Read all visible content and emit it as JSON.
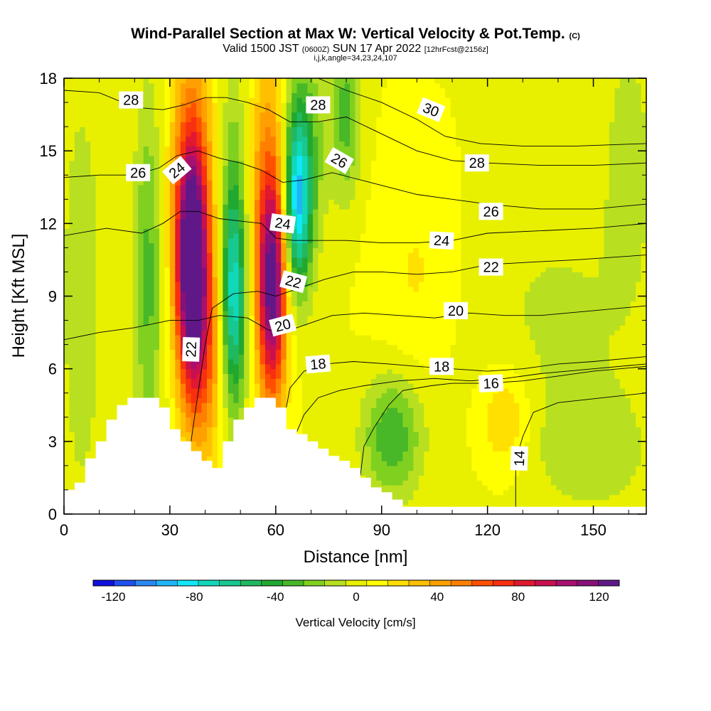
{
  "header": {
    "title": "Wind-Parallel Section at Max W: Vertical Velocity & Pot.Temp.",
    "title_mark": "(C)",
    "valid_prefix": "Valid 1500 JST",
    "valid_utc": "(0600Z)",
    "valid_date": "SUN 17 Apr 2022",
    "forecast": "[12hrFcst@2156z]",
    "indices": "i,j,k,angle=34,23,24,107"
  },
  "colors": {
    "scale": [
      "#1010e0",
      "#1e50f0",
      "#2888f0",
      "#20b4f8",
      "#10e8f8",
      "#10d8b8",
      "#18c890",
      "#20b860",
      "#20a830",
      "#48b828",
      "#80d020",
      "#b8e020",
      "#e8f000",
      "#ffff00",
      "#ffe000",
      "#ffc000",
      "#ffa000",
      "#ff8000",
      "#ff5000",
      "#f83010",
      "#e01830",
      "#c81050",
      "#a81070",
      "#881078",
      "#601888"
    ],
    "terrain": "#ffffff",
    "contour": "#000000"
  },
  "chart_data": {
    "type": "heatmap",
    "xlabel": "Distance [nm]",
    "ylabel": "Height [Kft MSL]",
    "xlim": [
      0,
      165
    ],
    "ylim": [
      0,
      18
    ],
    "xticks": [
      "0",
      "30",
      "60",
      "90",
      "120",
      "150"
    ],
    "yticks": [
      "0",
      "3",
      "6",
      "9",
      "12",
      "15",
      "18"
    ],
    "colorbar": {
      "label": "Vertical Velocity [cm/s]",
      "min": -130,
      "max": 130,
      "ticks": [
        "-120",
        "-80",
        "-40",
        "0",
        "40",
        "80",
        "120"
      ]
    },
    "velocity_field": {
      "background": 5,
      "features": [
        {
          "x": 36,
          "y": 10.5,
          "sx": 3.0,
          "sy": 3.6,
          "value": 130
        },
        {
          "x": 37,
          "y": 14.5,
          "sx": 5.5,
          "sy": 4.5,
          "value": 30
        },
        {
          "x": 40,
          "y": 7.0,
          "sx": 4.0,
          "sy": 3.5,
          "value": 45
        },
        {
          "x": 59,
          "y": 9.2,
          "sx": 2.8,
          "sy": 3.2,
          "value": 105
        },
        {
          "x": 58,
          "y": 13.5,
          "sx": 4.5,
          "sy": 4.5,
          "value": 40
        },
        {
          "x": 48,
          "y": 8.8,
          "sx": 2.6,
          "sy": 3.3,
          "value": -75
        },
        {
          "x": 48,
          "y": 14.0,
          "sx": 3.5,
          "sy": 4.5,
          "value": -25
        },
        {
          "x": 66,
          "y": 12.8,
          "sx": 2.8,
          "sy": 2.6,
          "value": -85
        },
        {
          "x": 68,
          "y": 15.5,
          "sx": 4.5,
          "sy": 3.5,
          "value": -30
        },
        {
          "x": 80,
          "y": 16.5,
          "sx": 3.0,
          "sy": 2.5,
          "value": -35
        },
        {
          "x": 24,
          "y": 10.0,
          "sx": 3.0,
          "sy": 5.5,
          "value": -35
        },
        {
          "x": 5,
          "y": 9.0,
          "sx": 4.0,
          "sy": 6.0,
          "value": -20
        },
        {
          "x": 93,
          "y": 3.2,
          "sx": 6.0,
          "sy": 1.8,
          "value": -40
        },
        {
          "x": 140,
          "y": 8.0,
          "sx": 18.0,
          "sy": 4.0,
          "value": -12
        },
        {
          "x": 150,
          "y": 2.5,
          "sx": 12.0,
          "sy": 1.8,
          "value": -15
        },
        {
          "x": 125,
          "y": 4.0,
          "sx": 5.0,
          "sy": 1.5,
          "value": 25
        },
        {
          "x": 100,
          "y": 10.0,
          "sx": 8.0,
          "sy": 3.0,
          "value": 12
        },
        {
          "x": 160,
          "y": 15.0,
          "sx": 5.0,
          "sy": 4.0,
          "value": -15
        }
      ]
    },
    "terrain_profile": [
      [
        0,
        1.0
      ],
      [
        3,
        1.0
      ],
      [
        3,
        1.3
      ],
      [
        6,
        1.3
      ],
      [
        6,
        2.3
      ],
      [
        9,
        2.3
      ],
      [
        9,
        3.0
      ],
      [
        12,
        3.0
      ],
      [
        12,
        3.9
      ],
      [
        15,
        3.9
      ],
      [
        15,
        4.5
      ],
      [
        18,
        4.5
      ],
      [
        18,
        4.8
      ],
      [
        21,
        4.8
      ],
      [
        27,
        4.8
      ],
      [
        27,
        4.4
      ],
      [
        30,
        4.4
      ],
      [
        30,
        3.5
      ],
      [
        33,
        3.5
      ],
      [
        33,
        3.0
      ],
      [
        36,
        3.0
      ],
      [
        36,
        2.6
      ],
      [
        39,
        2.6
      ],
      [
        39,
        2.2
      ],
      [
        42,
        2.2
      ],
      [
        42,
        1.9
      ],
      [
        45,
        1.9
      ],
      [
        45,
        3.0
      ],
      [
        48,
        3.0
      ],
      [
        48,
        3.9
      ],
      [
        51,
        3.9
      ],
      [
        51,
        4.4
      ],
      [
        54,
        4.4
      ],
      [
        54,
        4.8
      ],
      [
        57,
        4.8
      ],
      [
        60,
        4.8
      ],
      [
        60,
        4.4
      ],
      [
        63,
        4.4
      ],
      [
        63,
        3.5
      ],
      [
        66,
        3.5
      ],
      [
        66,
        3.3
      ],
      [
        69,
        3.3
      ],
      [
        69,
        3.0
      ],
      [
        72,
        3.0
      ],
      [
        72,
        2.7
      ],
      [
        75,
        2.7
      ],
      [
        75,
        2.4
      ],
      [
        78,
        2.4
      ],
      [
        78,
        2.2
      ],
      [
        81,
        2.2
      ],
      [
        81,
        1.9
      ],
      [
        84,
        1.9
      ],
      [
        84,
        1.5
      ],
      [
        87,
        1.5
      ],
      [
        87,
        1.1
      ],
      [
        90,
        1.1
      ],
      [
        90,
        0.9
      ],
      [
        93,
        0.9
      ],
      [
        93,
        0.6
      ],
      [
        96,
        0.6
      ],
      [
        96,
        0.3
      ],
      [
        165,
        0.3
      ]
    ],
    "theta_contours": [
      {
        "label": "14",
        "points": [
          [
            128,
            0.3
          ],
          [
            128,
            2.2
          ],
          [
            130,
            3.2
          ],
          [
            133,
            4.2
          ],
          [
            140,
            4.6
          ],
          [
            165,
            5.0
          ]
        ]
      },
      {
        "label": "",
        "points": [
          [
            84,
            1.6
          ],
          [
            85,
            2.8
          ],
          [
            88,
            3.6
          ],
          [
            92,
            4.5
          ],
          [
            96,
            5.1
          ],
          [
            104,
            5.3
          ],
          [
            110,
            5.4
          ],
          [
            120,
            5.4
          ],
          [
            130,
            5.5
          ],
          [
            140,
            5.7
          ],
          [
            150,
            5.9
          ],
          [
            165,
            6.1
          ]
        ]
      },
      {
        "label": "16",
        "points": [
          [
            66,
            3.4
          ],
          [
            68,
            4.1
          ],
          [
            72,
            4.8
          ],
          [
            78,
            5.1
          ],
          [
            85,
            5.3
          ],
          [
            95,
            5.5
          ],
          [
            105,
            5.6
          ],
          [
            115,
            5.5
          ],
          [
            125,
            5.6
          ],
          [
            135,
            5.8
          ],
          [
            150,
            6.0
          ],
          [
            165,
            6.2
          ]
        ]
      },
      {
        "label": "18",
        "points": [
          [
            63,
            4.4
          ],
          [
            64,
            5.2
          ],
          [
            68,
            5.9
          ],
          [
            74,
            6.2
          ],
          [
            82,
            6.3
          ],
          [
            92,
            6.2
          ],
          [
            100,
            6.1
          ],
          [
            110,
            6.0
          ],
          [
            120,
            5.9
          ],
          [
            130,
            6.0
          ],
          [
            140,
            6.2
          ],
          [
            150,
            6.3
          ],
          [
            165,
            6.5
          ]
        ]
      },
      {
        "label": "20",
        "points": [
          [
            0,
            7.2
          ],
          [
            10,
            7.5
          ],
          [
            20,
            7.7
          ],
          [
            30,
            8.0
          ],
          [
            38,
            8.0
          ],
          [
            44,
            8.2
          ],
          [
            52,
            8.1
          ],
          [
            58,
            7.6
          ],
          [
            62,
            7.5
          ],
          [
            68,
            7.8
          ],
          [
            76,
            8.2
          ],
          [
            85,
            8.3
          ],
          [
            95,
            8.2
          ],
          [
            105,
            8.1
          ],
          [
            115,
            8.3
          ],
          [
            125,
            8.2
          ],
          [
            135,
            8.2
          ],
          [
            150,
            8.4
          ],
          [
            165,
            8.6
          ]
        ]
      },
      {
        "label": "22",
        "points": [
          [
            36,
            3.0
          ],
          [
            38,
            5.0
          ],
          [
            40,
            7.0
          ],
          [
            42,
            8.5
          ],
          [
            48,
            9.1
          ],
          [
            55,
            9.2
          ],
          [
            60,
            9.0
          ],
          [
            66,
            9.3
          ],
          [
            74,
            9.7
          ],
          [
            82,
            10.0
          ],
          [
            90,
            10.0
          ],
          [
            100,
            9.9
          ],
          [
            110,
            10.0
          ],
          [
            120,
            10.3
          ],
          [
            132,
            10.4
          ],
          [
            145,
            10.5
          ],
          [
            165,
            10.7
          ]
        ]
      },
      {
        "label": "24",
        "points": [
          [
            0,
            11.5
          ],
          [
            12,
            11.8
          ],
          [
            22,
            11.6
          ],
          [
            28,
            12.0
          ],
          [
            33,
            12.5
          ],
          [
            38,
            12.5
          ],
          [
            44,
            12.2
          ],
          [
            50,
            12.1
          ],
          [
            56,
            12.0
          ],
          [
            60,
            11.4
          ],
          [
            65,
            11.3
          ],
          [
            72,
            11.3
          ],
          [
            80,
            11.3
          ],
          [
            90,
            11.2
          ],
          [
            100,
            11.2
          ],
          [
            110,
            11.3
          ],
          [
            120,
            11.6
          ],
          [
            135,
            11.7
          ],
          [
            150,
            11.8
          ],
          [
            165,
            12.0
          ]
        ]
      },
      {
        "label": "26",
        "points": [
          [
            0,
            13.9
          ],
          [
            10,
            14.0
          ],
          [
            20,
            14.0
          ],
          [
            27,
            14.3
          ],
          [
            32,
            14.8
          ],
          [
            38,
            15.0
          ],
          [
            44,
            14.7
          ],
          [
            50,
            14.5
          ],
          [
            56,
            14.2
          ],
          [
            62,
            13.7
          ],
          [
            68,
            13.8
          ],
          [
            76,
            14.1
          ],
          [
            84,
            13.8
          ],
          [
            92,
            13.5
          ],
          [
            100,
            13.2
          ],
          [
            110,
            13.0
          ],
          [
            120,
            12.8
          ],
          [
            135,
            12.6
          ],
          [
            150,
            12.6
          ],
          [
            165,
            12.8
          ]
        ]
      },
      {
        "label": "28",
        "points": [
          [
            0,
            17.5
          ],
          [
            10,
            17.4
          ],
          [
            20,
            16.8
          ],
          [
            28,
            16.7
          ],
          [
            34,
            16.9
          ],
          [
            40,
            17.2
          ],
          [
            46,
            17.2
          ],
          [
            52,
            17.0
          ],
          [
            58,
            16.7
          ],
          [
            64,
            16.2
          ],
          [
            72,
            16.2
          ],
          [
            80,
            16.4
          ],
          [
            90,
            15.7
          ],
          [
            100,
            15.0
          ],
          [
            110,
            14.6
          ],
          [
            120,
            14.5
          ],
          [
            135,
            14.4
          ],
          [
            150,
            14.4
          ],
          [
            165,
            14.5
          ]
        ]
      },
      {
        "label": "30",
        "points": [
          [
            72,
            18.0
          ],
          [
            80,
            17.5
          ],
          [
            90,
            17.0
          ],
          [
            100,
            16.3
          ],
          [
            108,
            15.6
          ],
          [
            118,
            15.3
          ],
          [
            130,
            15.2
          ],
          [
            145,
            15.2
          ],
          [
            165,
            15.3
          ]
        ]
      }
    ],
    "contour_labels": [
      {
        "text": "28",
        "x": 19,
        "y": 17.1,
        "angle": 0
      },
      {
        "text": "28",
        "x": 72,
        "y": 16.9,
        "angle": 0
      },
      {
        "text": "30",
        "x": 104,
        "y": 16.7,
        "angle": 22
      },
      {
        "text": "26",
        "x": 21,
        "y": 14.1,
        "angle": 0
      },
      {
        "text": "24",
        "x": 32,
        "y": 14.2,
        "angle": -40
      },
      {
        "text": "26",
        "x": 78,
        "y": 14.6,
        "angle": 30
      },
      {
        "text": "28",
        "x": 117,
        "y": 14.5,
        "angle": 0
      },
      {
        "text": "26",
        "x": 121,
        "y": 12.5,
        "angle": 0
      },
      {
        "text": "24",
        "x": 62,
        "y": 12.0,
        "angle": 8
      },
      {
        "text": "24",
        "x": 107,
        "y": 11.3,
        "angle": 3
      },
      {
        "text": "22",
        "x": 121,
        "y": 10.2,
        "angle": 0
      },
      {
        "text": "22",
        "x": 65,
        "y": 9.6,
        "angle": 15
      },
      {
        "text": "20",
        "x": 111,
        "y": 8.4,
        "angle": 0
      },
      {
        "text": "20",
        "x": 62,
        "y": 7.8,
        "angle": -15
      },
      {
        "text": "22",
        "x": 36,
        "y": 6.8,
        "angle": -88
      },
      {
        "text": "18",
        "x": 72,
        "y": 6.2,
        "angle": -5
      },
      {
        "text": "18",
        "x": 107,
        "y": 6.1,
        "angle": 0
      },
      {
        "text": "16",
        "x": 121,
        "y": 5.4,
        "angle": -3
      },
      {
        "text": "14",
        "x": 129,
        "y": 2.3,
        "angle": -88
      }
    ]
  }
}
